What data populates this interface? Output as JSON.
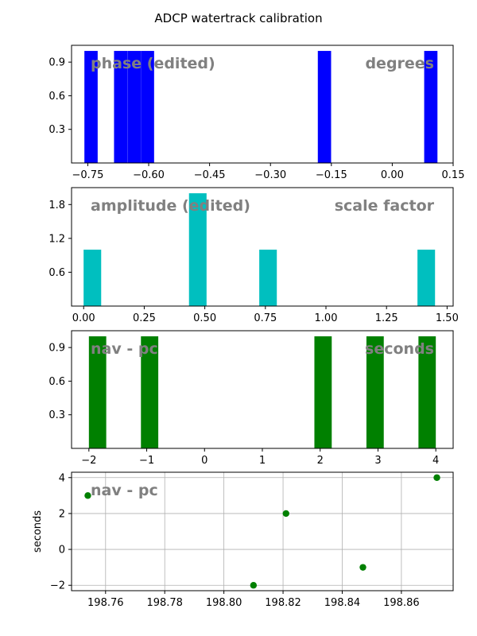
{
  "figure": {
    "title": "ADCP watertrack calibration"
  },
  "chart_data": [
    {
      "type": "bar",
      "name": "phase-histogram",
      "label_left": "phase (edited)",
      "label_right": "degrees",
      "color": "#0000ff",
      "bin_width": 0.0327,
      "bins": [
        {
          "x": -0.742,
          "count": 1
        },
        {
          "x": -0.669,
          "count": 1
        },
        {
          "x": -0.636,
          "count": 1
        },
        {
          "x": -0.603,
          "count": 1
        },
        {
          "x": -0.167,
          "count": 1
        },
        {
          "x": 0.095,
          "count": 1
        }
      ],
      "xlim": [
        -0.79,
        0.15
      ],
      "ylim": [
        0,
        1.05
      ],
      "xticks": [
        -0.75,
        -0.6,
        -0.45,
        -0.3,
        -0.15,
        0.0,
        0.15
      ],
      "xtick_labels": [
        "−0.75",
        "−0.60",
        "−0.45",
        "−0.30",
        "−0.15",
        "0.00",
        "0.15"
      ],
      "yticks": [
        0.3,
        0.6,
        0.9
      ],
      "ytick_labels": [
        "0.3",
        "0.6",
        "0.9"
      ],
      "grid": false
    },
    {
      "type": "bar",
      "name": "amplitude-histogram",
      "label_left": "amplitude (edited)",
      "label_right": "scale factor",
      "color": "#00bfbf",
      "bin_width": 0.0725,
      "bins": [
        {
          "x": 0.036,
          "count": 1
        },
        {
          "x": 0.471,
          "count": 2
        },
        {
          "x": 0.761,
          "count": 1
        },
        {
          "x": 1.414,
          "count": 1
        }
      ],
      "xlim": [
        -0.05,
        1.525
      ],
      "ylim": [
        0,
        2.1
      ],
      "xticks": [
        0.0,
        0.25,
        0.5,
        0.75,
        1.0,
        1.25,
        1.5
      ],
      "xtick_labels": [
        "0.00",
        "0.25",
        "0.50",
        "0.75",
        "1.00",
        "1.25",
        "1.50"
      ],
      "yticks": [
        0.6,
        1.2,
        1.8
      ],
      "ytick_labels": [
        "0.6",
        "1.2",
        "1.8"
      ],
      "grid": false
    },
    {
      "type": "bar",
      "name": "nav-pc-histogram",
      "label_left": "nav - pc",
      "label_right": "seconds",
      "color": "#008000",
      "bin_width": 0.3,
      "bins": [
        {
          "x": -1.85,
          "count": 1
        },
        {
          "x": -0.95,
          "count": 1
        },
        {
          "x": 2.05,
          "count": 1
        },
        {
          "x": 2.95,
          "count": 1
        },
        {
          "x": 3.85,
          "count": 1
        }
      ],
      "xlim": [
        -2.3,
        4.3
      ],
      "ylim": [
        0,
        1.05
      ],
      "xticks": [
        -2,
        -1,
        0,
        1,
        2,
        3,
        4
      ],
      "xtick_labels": [
        "−2",
        "−1",
        "0",
        "1",
        "2",
        "3",
        "4"
      ],
      "yticks": [
        0.3,
        0.6,
        0.9
      ],
      "ytick_labels": [
        "0.3",
        "0.6",
        "0.9"
      ],
      "grid": false
    },
    {
      "type": "scatter",
      "name": "nav-pc-scatter",
      "label_left": "nav - pc",
      "ylabel": "seconds",
      "color": "#008000",
      "points": [
        {
          "x": 198.754,
          "y": 3
        },
        {
          "x": 198.81,
          "y": -2
        },
        {
          "x": 198.821,
          "y": 2
        },
        {
          "x": 198.847,
          "y": -1
        },
        {
          "x": 198.872,
          "y": 4
        }
      ],
      "xlim": [
        198.7485,
        198.8775
      ],
      "ylim": [
        -2.3,
        4.3
      ],
      "xticks": [
        198.76,
        198.78,
        198.8,
        198.82,
        198.84,
        198.86
      ],
      "xtick_labels": [
        "198.76",
        "198.78",
        "198.80",
        "198.82",
        "198.84",
        "198.86"
      ],
      "yticks": [
        -2,
        0,
        2,
        4
      ],
      "ytick_labels": [
        "−2",
        "0",
        "2",
        "4"
      ],
      "grid": true
    }
  ]
}
